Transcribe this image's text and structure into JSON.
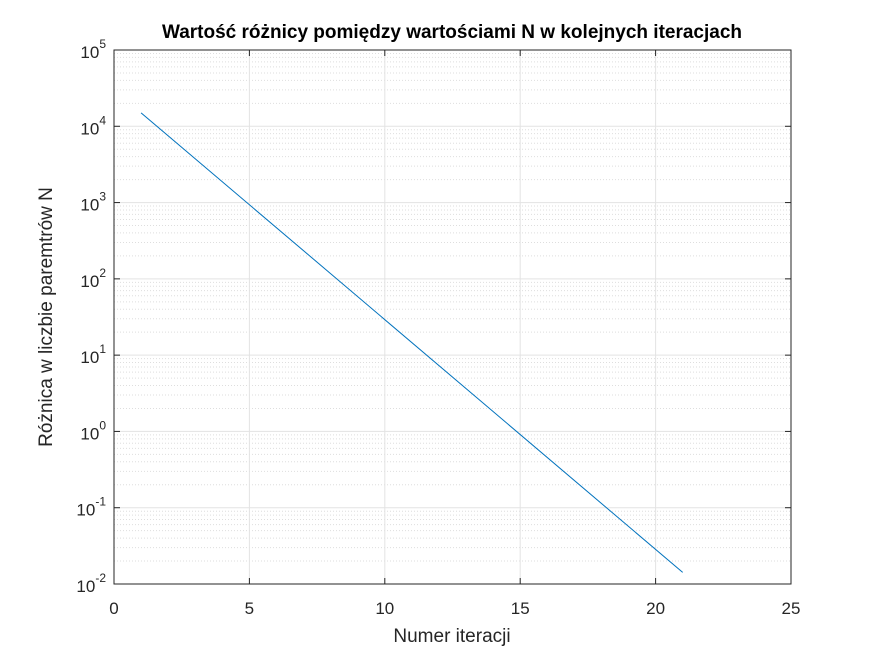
{
  "chart_data": {
    "type": "line",
    "title": "Wartość różnicy pomiędzy wartościami N w kolejnych iteracjach",
    "xlabel": "Numer iteracji",
    "ylabel": "Różnica w liczbie paremtrów N",
    "xlim": [
      0,
      25
    ],
    "ylim": [
      0.01,
      100000
    ],
    "yscale": "log",
    "grid": true,
    "minor_grid": true,
    "xticks": [
      0,
      5,
      10,
      15,
      20,
      25
    ],
    "yticks": [
      {
        "base": "10",
        "exp": "-2"
      },
      {
        "base": "10",
        "exp": "-1"
      },
      {
        "base": "10",
        "exp": "0"
      },
      {
        "base": "10",
        "exp": "1"
      },
      {
        "base": "10",
        "exp": "2"
      },
      {
        "base": "10",
        "exp": "3"
      },
      {
        "base": "10",
        "exp": "4"
      },
      {
        "base": "10",
        "exp": "5"
      }
    ],
    "series": [
      {
        "color": "#0072BD",
        "x": [
          1,
          21
        ],
        "y": [
          15000,
          0.0142
        ]
      }
    ]
  }
}
